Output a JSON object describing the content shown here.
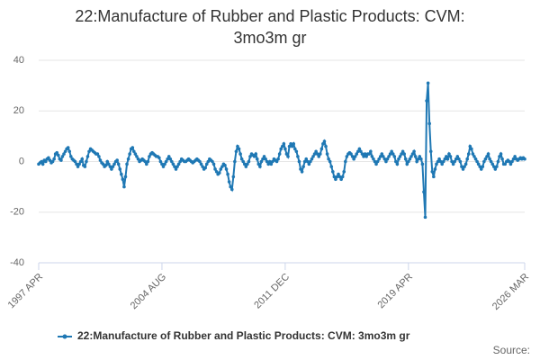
{
  "chart_data": {
    "type": "line",
    "title": "22:Manufacture of Rubber and Plastic Products: CVM: 3mo3m gr",
    "source": "Source:",
    "categories": [
      "1997 APR",
      null,
      null,
      null,
      null,
      null,
      null,
      null,
      null,
      null,
      null,
      null,
      null,
      null,
      null,
      null,
      null,
      null,
      null,
      null,
      null,
      null,
      null,
      null,
      null,
      null,
      null,
      null,
      null,
      null,
      null,
      null,
      null,
      null,
      null,
      null,
      null,
      null,
      null,
      null,
      null,
      null,
      null,
      null,
      null,
      null,
      null,
      null,
      null,
      null,
      null,
      null,
      null,
      null,
      null,
      null,
      null,
      null,
      null,
      null,
      null,
      null,
      null,
      null,
      null,
      null,
      null,
      null,
      null,
      null,
      null,
      null,
      null,
      null,
      null,
      null,
      null,
      null,
      null,
      null,
      null,
      null,
      null,
      null,
      null,
      null,
      null,
      null,
      "2004 AUG",
      null,
      null,
      null,
      null,
      null,
      null,
      null,
      null,
      null,
      null,
      null,
      null,
      null,
      null,
      null,
      null,
      null,
      null,
      null,
      null,
      null,
      null,
      null,
      null,
      null,
      null,
      null,
      null,
      null,
      null,
      null,
      null,
      null,
      null,
      null,
      null,
      null,
      null,
      null,
      null,
      null,
      null,
      null,
      null,
      null,
      null,
      null,
      null,
      null,
      null,
      null,
      null,
      null,
      null,
      null,
      null,
      null,
      null,
      null,
      null,
      null,
      null,
      null,
      null,
      null,
      null,
      null,
      null,
      null,
      null,
      null,
      null,
      null,
      null,
      null,
      null,
      null,
      null,
      null,
      null,
      null,
      null,
      null,
      null,
      null,
      null,
      null,
      "2011 DEC",
      null,
      null,
      null,
      null,
      null,
      null,
      null,
      null,
      null,
      null,
      null,
      null,
      null,
      null,
      null,
      null,
      null,
      null,
      null,
      null,
      null,
      null,
      null,
      null,
      null,
      null,
      null,
      null,
      null,
      null,
      null,
      null,
      null,
      null,
      null,
      null,
      null,
      null,
      null,
      null,
      null,
      null,
      null,
      null,
      null,
      null,
      null,
      null,
      null,
      null,
      null,
      null,
      null,
      null,
      null,
      null,
      null,
      null,
      null,
      null,
      null,
      null,
      null,
      null,
      null,
      null,
      null,
      null,
      null,
      null,
      null,
      null,
      null,
      null,
      null,
      null,
      null,
      null,
      null,
      null,
      null,
      null,
      null,
      null,
      null,
      null,
      null,
      "2019 APR",
      null,
      null,
      null,
      null,
      null,
      null,
      null,
      null,
      null,
      null,
      null,
      null,
      null,
      null,
      null,
      null,
      null,
      null,
      null,
      null,
      null,
      null,
      null,
      null,
      null,
      null,
      null,
      null,
      null,
      null,
      null,
      null,
      null,
      null,
      null,
      null,
      null,
      null,
      null,
      null,
      null,
      null,
      null,
      null,
      null,
      null,
      null,
      null,
      null,
      null,
      null,
      null,
      null,
      null,
      null,
      null,
      null,
      null,
      null,
      null,
      null,
      null,
      null,
      null,
      null,
      null,
      null,
      null,
      null,
      null,
      null,
      null,
      null,
      null,
      null,
      null,
      null,
      null,
      null,
      null,
      null,
      null,
      "2026 MAR"
    ],
    "series": [
      {
        "name": "22:Manufacture of Rubber and Plastic Products: CVM: 3mo3m gr",
        "color": "#1f78b4",
        "values": [
          -1,
          -0.5,
          0,
          -1,
          0.5,
          0,
          1,
          1.5,
          0.5,
          -0.5,
          0,
          1,
          3,
          3.5,
          2.5,
          1,
          0.5,
          2,
          3,
          4,
          5,
          5.5,
          4,
          2,
          1,
          0.5,
          0,
          -1,
          -2,
          -1,
          0,
          1,
          -1.5,
          -2,
          0,
          2,
          4,
          5,
          4.5,
          4,
          3.5,
          3,
          3,
          2,
          0.5,
          -0.5,
          -1,
          -2,
          -1.5,
          0,
          -1,
          -2,
          -3,
          -2,
          -1,
          0,
          0.5,
          -1,
          -3,
          -5,
          -7,
          -10,
          -6,
          -1,
          1,
          3,
          5,
          5.5,
          4,
          3,
          2,
          1,
          0,
          0.5,
          1,
          0.5,
          0,
          -1,
          0,
          2,
          3,
          3.5,
          3,
          2.5,
          2,
          2,
          1.5,
          0,
          -1,
          -2,
          -1,
          0,
          1,
          2,
          1,
          0,
          -1,
          -2,
          -3,
          -2,
          -1,
          0,
          1,
          0.5,
          0,
          0,
          0.5,
          1,
          0.5,
          0,
          -0.5,
          0,
          0.5,
          1,
          0.5,
          0,
          -1,
          -2,
          -3,
          -2.5,
          -1,
          0,
          1,
          0.5,
          0,
          -1,
          -3,
          -4,
          -5,
          -4.5,
          -3,
          -2,
          -1,
          -1.5,
          -3,
          -5,
          -8,
          -10,
          -11,
          -6,
          0,
          4,
          6,
          5,
          3,
          1,
          0,
          -1,
          -2,
          -1,
          0,
          2,
          3,
          2.5,
          2,
          3,
          1,
          -1,
          -2,
          0,
          1,
          2,
          1,
          0,
          -1,
          0,
          -1,
          0,
          1,
          0.5,
          0,
          1,
          3,
          5,
          6,
          7,
          5,
          3,
          2,
          6,
          7,
          6,
          7,
          5,
          4,
          2,
          0,
          -3,
          -4,
          -2,
          0,
          1,
          0,
          -1,
          0,
          1,
          2,
          3,
          4,
          3,
          2,
          3,
          5,
          7,
          8,
          6,
          3,
          1,
          0,
          -2,
          -4,
          -6,
          -7,
          -6,
          -5,
          -6,
          -7,
          -6,
          -4,
          0,
          2,
          3,
          3.5,
          3,
          2,
          1,
          2,
          3,
          4,
          5,
          4,
          3,
          2,
          3,
          2,
          3,
          3,
          4,
          2,
          1,
          0,
          -1,
          0,
          1,
          2,
          3,
          2,
          1,
          0,
          1,
          2,
          3,
          4,
          3,
          2,
          0,
          -1,
          1,
          2,
          3,
          4,
          3,
          1,
          -1,
          0,
          1,
          2,
          3,
          4,
          2,
          0,
          1,
          2,
          1,
          -1,
          -12,
          -22,
          24,
          31,
          15,
          4,
          -4,
          -6,
          -3,
          -1,
          0,
          1,
          0,
          -1,
          0,
          1,
          2,
          1,
          3,
          2,
          0,
          -1,
          0,
          1,
          2,
          1,
          0,
          -2,
          -3,
          -2,
          -1,
          1,
          3,
          6,
          5,
          3,
          2,
          1,
          0,
          -1,
          -2,
          -3,
          -2,
          0,
          1,
          2,
          3,
          1,
          0,
          -1,
          -2,
          -3,
          -2,
          0,
          2,
          3,
          1,
          -1,
          -1,
          0,
          0.5,
          0,
          -1,
          0,
          1,
          2,
          1,
          0.5,
          1,
          1.5,
          1,
          1.5,
          1
        ]
      }
    ],
    "ylim": [
      -40,
      40
    ],
    "yticks": [
      -40,
      -20,
      0,
      20,
      40
    ],
    "grid": true
  }
}
